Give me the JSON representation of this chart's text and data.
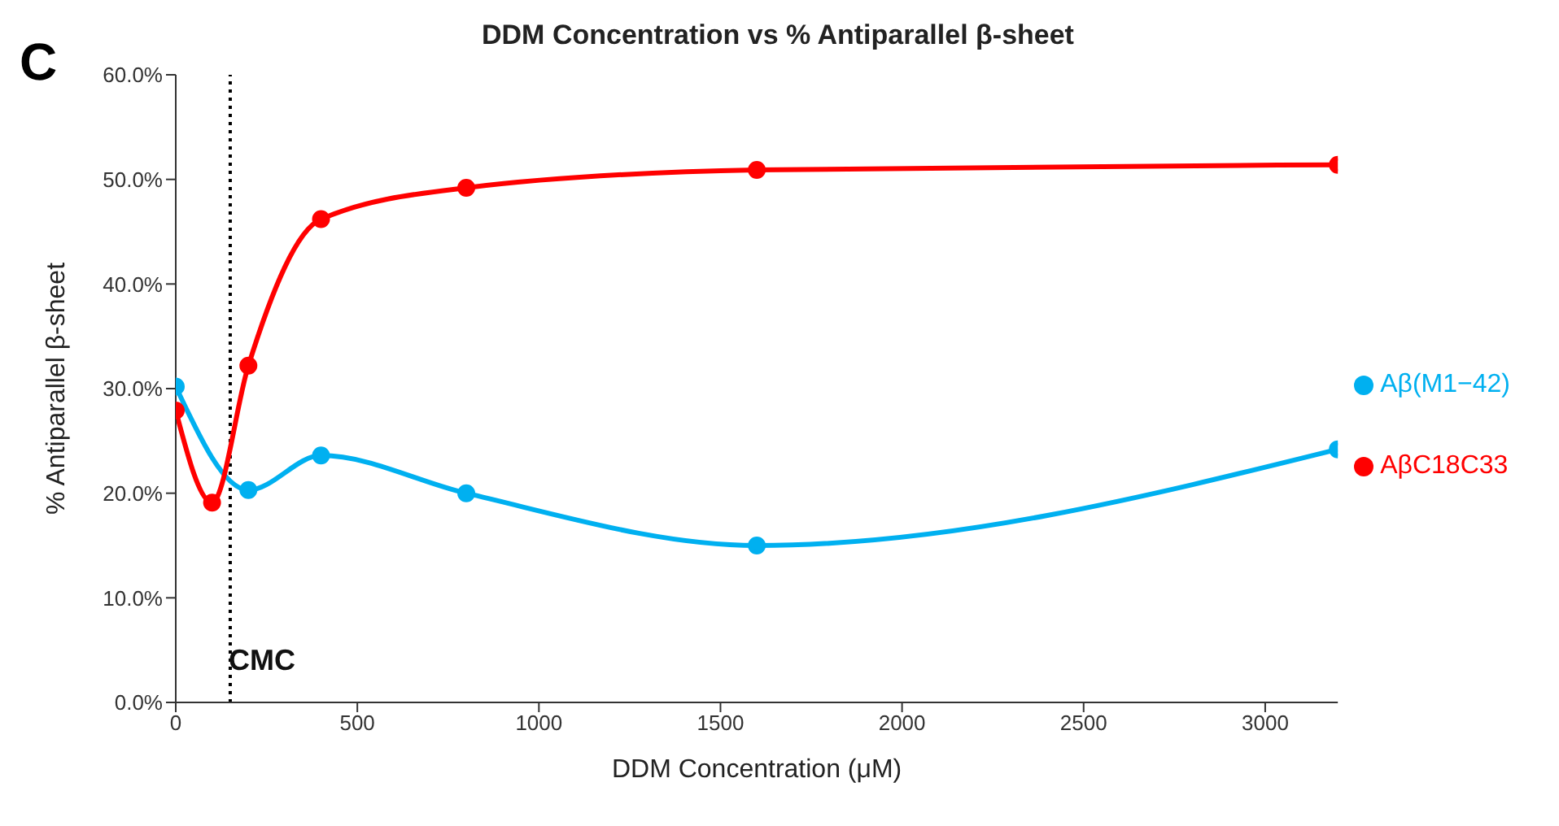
{
  "chart_data": {
    "type": "line",
    "title": "DDM Concentration vs % Antiparallel β-sheet",
    "xlabel": "DDM Concentration (μM)",
    "ylabel": "% Antiparallel β-sheet",
    "annotations": [
      "C"
    ],
    "x": [
      0,
      100,
      200,
      400,
      800,
      1600,
      3200
    ],
    "series": [
      {
        "name": "Aβ(M1−42)",
        "color": "#00b0f0",
        "values": [
          30.2,
          null,
          20.3,
          23.6,
          20.0,
          15.0,
          24.2
        ]
      },
      {
        "name": "AβC18C33",
        "color": "#ff0000",
        "values": [
          27.9,
          19.1,
          32.2,
          46.2,
          49.2,
          50.9,
          51.4
        ]
      }
    ],
    "xlim": [
      0,
      3200
    ],
    "xticks": [
      0,
      500,
      1000,
      1500,
      2000,
      2500,
      3000
    ],
    "ylim": [
      0,
      60
    ],
    "yticks": [
      {
        "value": 0,
        "label": "0.0%"
      },
      {
        "value": 10,
        "label": "10.0%"
      },
      {
        "value": 20,
        "label": "20.0%"
      },
      {
        "value": 30,
        "label": "30.0%"
      },
      {
        "value": 40,
        "label": "40.0%"
      },
      {
        "value": 50,
        "label": "50.0%"
      },
      {
        "value": 60,
        "label": "60.0%"
      }
    ],
    "ref_lines": [
      {
        "axis": "x",
        "value": 150,
        "label": "CMC",
        "color": "#000000",
        "line_style": "dotted"
      }
    ],
    "grid": false,
    "legend": "right",
    "marker": "circle",
    "line_style": "solid"
  }
}
